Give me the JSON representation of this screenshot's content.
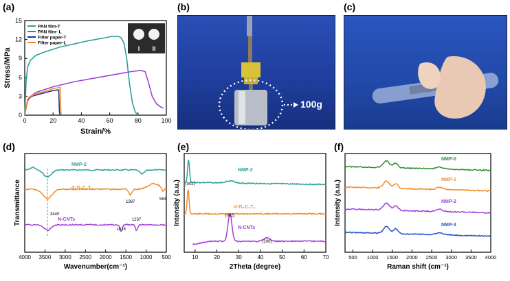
{
  "panels": {
    "a": {
      "label": "(a)"
    },
    "b": {
      "label": "(b)",
      "weight_label": "100g"
    },
    "c": {
      "label": "(c)"
    },
    "d": {
      "label": "(d)"
    },
    "e": {
      "label": "(e)"
    },
    "f": {
      "label": "(f)"
    }
  },
  "chart_data": [
    {
      "id": "a",
      "type": "line",
      "xlabel": "Strain/%",
      "ylabel": "Stress/MPa",
      "xlim": [
        0,
        100
      ],
      "ylim": [
        0,
        15
      ],
      "xticks": [
        "0",
        "20",
        "40",
        "60",
        "80",
        "100"
      ],
      "yticks": [
        "0",
        "3",
        "6",
        "9",
        "12",
        "15"
      ],
      "legend_position": "top-left",
      "inset": {
        "labels": [
          "I",
          "II"
        ]
      },
      "series": [
        {
          "name": "PAN film-T",
          "color": "#2aa198",
          "x": [
            0,
            1,
            2,
            4,
            8,
            15,
            25,
            35,
            45,
            55,
            62,
            66,
            68,
            70,
            72,
            74,
            76,
            78,
            80
          ],
          "y": [
            0,
            5.5,
            7.6,
            8.7,
            9.5,
            10.1,
            10.8,
            11.3,
            11.8,
            12.2,
            12.5,
            12.5,
            12.3,
            11.5,
            9,
            5,
            2,
            0.5,
            0
          ]
        },
        {
          "name": "PAN film- L",
          "color": "#a040d8",
          "x": [
            0,
            1,
            3,
            8,
            20,
            35,
            50,
            65,
            75,
            82,
            85,
            87,
            90,
            93,
            96,
            98
          ],
          "y": [
            0,
            1.5,
            2.8,
            3.6,
            4.5,
            5.3,
            5.9,
            6.5,
            6.9,
            7.1,
            6.9,
            5.5,
            3,
            1.8,
            1.3,
            1.1
          ]
        },
        {
          "name": "Filter paper-T",
          "color": "#1f2f8f",
          "x": [
            0,
            2,
            5,
            10,
            15,
            20,
            24,
            24.5,
            25
          ],
          "y": [
            0,
            2.4,
            3.0,
            3.3,
            3.6,
            3.9,
            4.0,
            0.5,
            0
          ]
        },
        {
          "name": "Filter paper-L",
          "color": "#f28c28",
          "x": [
            0,
            2,
            5,
            10,
            15,
            20,
            25,
            25.5,
            26
          ],
          "y": [
            0,
            2.5,
            3.1,
            3.5,
            3.8,
            4.2,
            4.4,
            0.5,
            0
          ]
        }
      ]
    },
    {
      "id": "d",
      "type": "line",
      "xlabel": "Wavenumber(cm⁻¹)",
      "ylabel": "Transmittance",
      "xlim": [
        4000,
        500
      ],
      "xticks": [
        "4000",
        "3500",
        "3000",
        "2500",
        "2000",
        "1500",
        "1000",
        "500"
      ],
      "annotations": [
        "3440",
        "1618",
        "1237",
        "1387",
        "584"
      ],
      "series": [
        {
          "name": "NMP-2",
          "color": "#2aa198"
        },
        {
          "name": "d-Ti₃C₂Tₓ",
          "color": "#f28c28"
        },
        {
          "name": "N-CNTs",
          "color": "#a040d8"
        }
      ]
    },
    {
      "id": "e",
      "type": "line",
      "xlabel": "2Theta (degree)",
      "ylabel": "Intensity (a.u.)",
      "xlim": [
        5,
        70
      ],
      "xticks": [
        "10",
        "20",
        "30",
        "40",
        "50",
        "60",
        "70"
      ],
      "annotations": [
        "(002)",
        "(002)",
        "(100)"
      ],
      "series": [
        {
          "name": "NMP-2",
          "color": "#2aa198"
        },
        {
          "name": "d-Ti₃C₂Tₓ",
          "color": "#f28c28"
        },
        {
          "name": "N-CNTs",
          "color": "#a040d8"
        }
      ]
    },
    {
      "id": "f",
      "type": "line",
      "xlabel": "Raman shift (cm⁻¹)",
      "ylabel": "Intensity (a.u.)",
      "xlim": [
        300,
        4000
      ],
      "xticks": [
        "500",
        "1000",
        "1500",
        "2000",
        "2500",
        "3000",
        "3500",
        "4000"
      ],
      "series": [
        {
          "name": "NMP-0",
          "color": "#2e8b2e"
        },
        {
          "name": "NMP-1",
          "color": "#f28c28"
        },
        {
          "name": "NMP-2",
          "color": "#a040d8"
        },
        {
          "name": "NMP-3",
          "color": "#2a4fc8"
        }
      ]
    }
  ]
}
